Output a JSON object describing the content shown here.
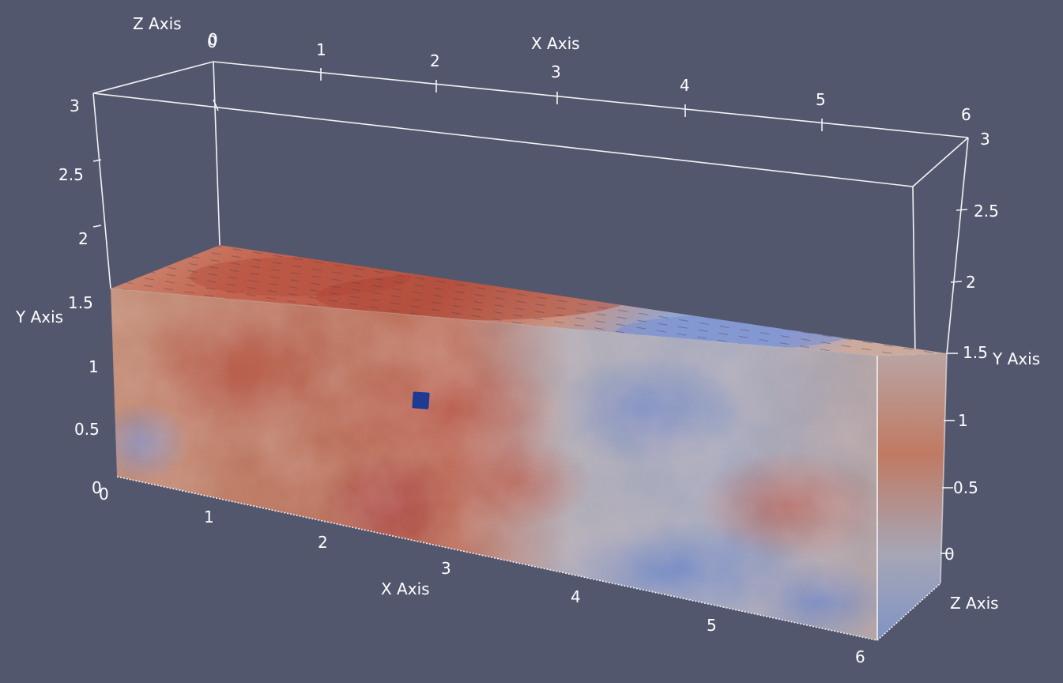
{
  "scene": {
    "background_color": "#52576e",
    "bounding_box_color": "#f2f2f2",
    "colormap": [
      "#3b4cc0",
      "#b7b9c4",
      "#b40426"
    ],
    "probe_marker_color": "#1f3a93"
  },
  "axes": {
    "front_x": {
      "title": "X Axis",
      "ticks": [
        "0",
        "1",
        "2",
        "3",
        "4",
        "5",
        "6"
      ]
    },
    "top_x": {
      "title": "X Axis",
      "ticks": [
        "0",
        "1",
        "2",
        "3",
        "4",
        "5",
        "6"
      ]
    },
    "left_y": {
      "title": "Y Axis",
      "ticks": [
        "0",
        "0.5",
        "1",
        "1.5",
        "2",
        "2.5",
        "3"
      ]
    },
    "right_y": {
      "title": "Y Axis",
      "ticks": [
        "0",
        "0.5",
        "1",
        "1.5",
        "2",
        "2.5",
        "3"
      ]
    },
    "top_z": {
      "title": "Z Axis",
      "ticks": [
        "0"
      ]
    },
    "right_z": {
      "title": "Z Axis",
      "ticks": [
        "0"
      ]
    }
  }
}
